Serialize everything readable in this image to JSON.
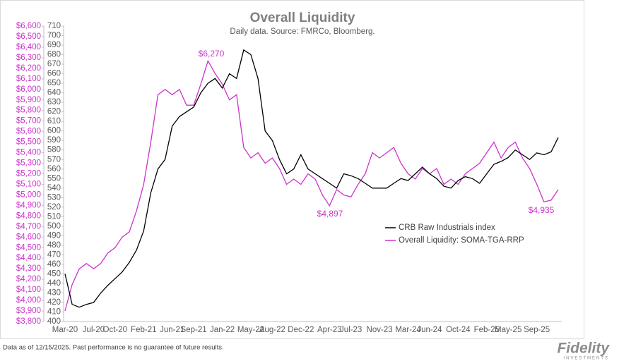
{
  "chart_data": {
    "type": "line",
    "title": "Overall Liquidity",
    "subtitle": "Daily data.  Source: FMRCo, Bloomberg.",
    "categories": [
      "Mar-20",
      null,
      null,
      null,
      "Jul-20",
      null,
      null,
      "Oct-20",
      null,
      null,
      null,
      "Feb-21",
      null,
      null,
      null,
      "Jun-21",
      null,
      null,
      "Sep-21",
      null,
      null,
      null,
      "Jan-22",
      null,
      null,
      null,
      "May-22",
      null,
      null,
      "Aug-22",
      null,
      null,
      null,
      "Dec-22",
      null,
      null,
      null,
      "Apr-23",
      null,
      null,
      "Jul-23",
      null,
      null,
      null,
      "Nov-23",
      null,
      null,
      null,
      "Mar-24",
      null,
      null,
      "Jun-24",
      null,
      null,
      null,
      "Oct-24",
      null,
      null,
      null,
      "Feb-25",
      null,
      null,
      "May-25",
      null,
      null,
      null,
      "Sep-25",
      null,
      null,
      null
    ],
    "series": [
      {
        "name": "CRB Raw Industrials index",
        "color": "#000000",
        "axis": "y2",
        "values": [
          450,
          418,
          415,
          418,
          420,
          430,
          438,
          445,
          452,
          462,
          475,
          495,
          535,
          560,
          570,
          605,
          615,
          620,
          625,
          640,
          650,
          655,
          645,
          660,
          655,
          685,
          680,
          655,
          600,
          590,
          570,
          555,
          560,
          575,
          560,
          555,
          550,
          545,
          540,
          555,
          553,
          550,
          545,
          540,
          540,
          540,
          545,
          550,
          548,
          555,
          562,
          555,
          550,
          542,
          540,
          548,
          552,
          550,
          545,
          555,
          565,
          568,
          572,
          580,
          575,
          570,
          577,
          575,
          578,
          593
        ]
      },
      {
        "name": "Overall Liquidity: SOMA-TGA-RRP",
        "color": "#cc33cc",
        "values": [
          3900,
          4150,
          4300,
          4350,
          4300,
          4350,
          4450,
          4500,
          4600,
          4650,
          4850,
          5100,
          5500,
          5950,
          6000,
          5950,
          6000,
          5850,
          5850,
          6050,
          6270,
          6150,
          6050,
          5900,
          5950,
          5450,
          5350,
          5400,
          5300,
          5350,
          5250,
          5100,
          5150,
          5100,
          5200,
          5150,
          5000,
          4897,
          5050,
          5000,
          4980,
          5100,
          5200,
          5400,
          5350,
          5400,
          5450,
          5300,
          5200,
          5150,
          5250,
          5200,
          5250,
          5100,
          5150,
          5100,
          5200,
          5250,
          5300,
          5400,
          5500,
          5350,
          5450,
          5500,
          5350,
          5250,
          5100,
          4935,
          4950,
          5050
        ]
      }
    ],
    "ylim": [
      3800,
      6600
    ],
    "yticks": [
      {
        "value": 3800,
        "label": "$3,800"
      },
      {
        "value": 3900,
        "label": "$3,900"
      },
      {
        "value": 4000,
        "label": "$4,000"
      },
      {
        "value": 4100,
        "label": "$4,100"
      },
      {
        "value": 4200,
        "label": "$4,200"
      },
      {
        "value": 4300,
        "label": "$4,300"
      },
      {
        "value": 4400,
        "label": "$4,400"
      },
      {
        "value": 4500,
        "label": "$4,500"
      },
      {
        "value": 4600,
        "label": "$4,600"
      },
      {
        "value": 4700,
        "label": "$4,700"
      },
      {
        "value": 4800,
        "label": "$4,800"
      },
      {
        "value": 4900,
        "label": "$4,900"
      },
      {
        "value": 5000,
        "label": "$5,000"
      },
      {
        "value": 5100,
        "label": "$5,100"
      },
      {
        "value": 5200,
        "label": "$5,200"
      },
      {
        "value": 5300,
        "label": "$5,300"
      },
      {
        "value": 5400,
        "label": "$5,400"
      },
      {
        "value": 5500,
        "label": "$5,500"
      },
      {
        "value": 5600,
        "label": "$5,600"
      },
      {
        "value": 5700,
        "label": "$5,700"
      },
      {
        "value": 5800,
        "label": "$5,800"
      },
      {
        "value": 5900,
        "label": "$5,900"
      },
      {
        "value": 6000,
        "label": "$6,000"
      },
      {
        "value": 6100,
        "label": "$6,100"
      },
      {
        "value": 6200,
        "label": "$6,200"
      },
      {
        "value": 6300,
        "label": "$6,300"
      },
      {
        "value": 6400,
        "label": "$6,400"
      },
      {
        "value": 6500,
        "label": "$6,500"
      },
      {
        "value": 6600,
        "label": "$6,600"
      }
    ],
    "y2lim": [
      400,
      710
    ],
    "y2ticks": [
      400,
      410,
      420,
      430,
      440,
      450,
      460,
      470,
      480,
      490,
      500,
      510,
      520,
      530,
      540,
      550,
      560,
      570,
      580,
      590,
      600,
      610,
      620,
      630,
      640,
      650,
      660,
      670,
      680,
      690,
      700,
      710
    ],
    "yaxis_color": "#cc33cc",
    "y2axis_color": "#595959",
    "legend": "right",
    "grid": false,
    "annotations": [
      "$6,270",
      "$4,897",
      "$4,935"
    ],
    "footnote": "Data as of 12/15/2025. Past performance is no guarantee of future results.",
    "brand": "Fidelity",
    "brand_sub": "INVESTMENTS"
  }
}
